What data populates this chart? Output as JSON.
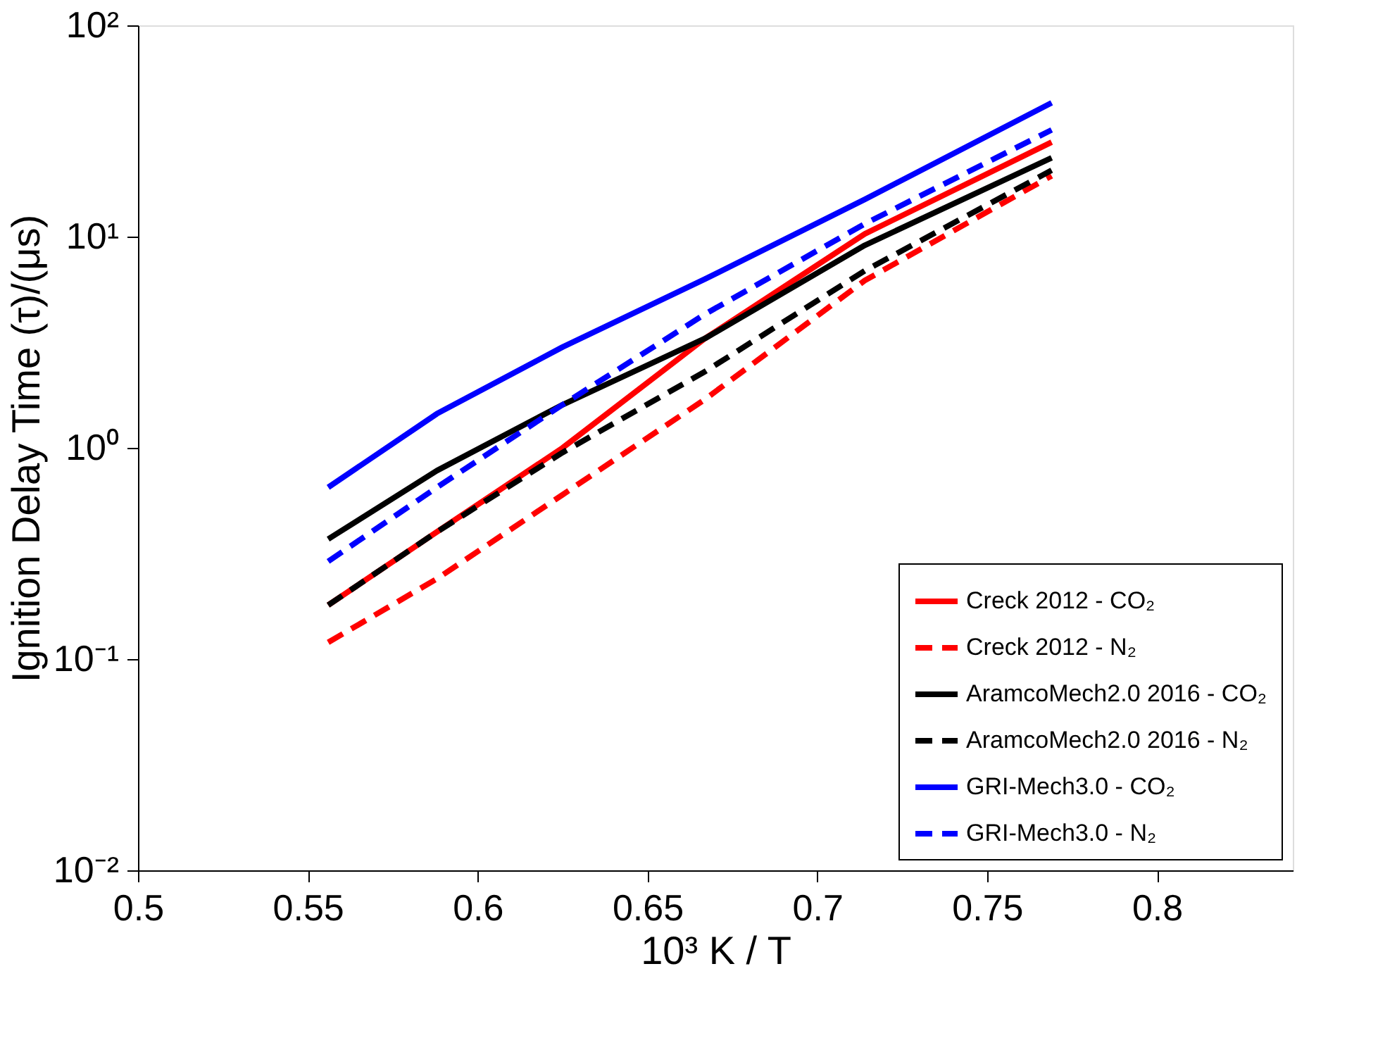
{
  "chart_data": {
    "type": "line",
    "xlabel": "10³ K / T",
    "ylabel": "Ignition Delay Time (τ)/(μs)",
    "x": [
      0.556,
      0.588,
      0.625,
      0.667,
      0.714,
      0.769
    ],
    "series": [
      {
        "name": "Creck 2012 - CO₂",
        "color": "#ff0000",
        "line_style": "solid",
        "values": [
          0.18,
          0.4,
          1.0,
          3.3,
          10.3,
          28
        ]
      },
      {
        "name": "Creck 2012 - N₂",
        "color": "#ff0000",
        "line_style": "dashed",
        "values": [
          0.12,
          0.24,
          0.6,
          1.7,
          6.2,
          19.4
        ]
      },
      {
        "name": "AramcoMech2.0 2016 - CO₂",
        "color": "#000000",
        "line_style": "solid",
        "values": [
          0.37,
          0.78,
          1.6,
          3.3,
          9.1,
          23.6
        ]
      },
      {
        "name": "AramcoMech2.0 2016 - N₂",
        "color": "#000000",
        "line_style": "dashed",
        "values": [
          0.18,
          0.4,
          0.95,
          2.3,
          6.9,
          20.6
        ]
      },
      {
        "name": "GRI-Mech3.0 - CO₂",
        "color": "#0000ff",
        "line_style": "solid",
        "values": [
          0.65,
          1.45,
          3.0,
          6.3,
          15,
          43
        ]
      },
      {
        "name": "GRI-Mech3.0 - N₂",
        "color": "#0000ff",
        "line_style": "dashed",
        "values": [
          0.29,
          0.65,
          1.6,
          4.3,
          11.5,
          32
        ]
      }
    ],
    "log": "y",
    "xlim": [
      0.5,
      0.84
    ],
    "xticks": [
      0.5,
      0.55,
      0.6,
      0.65,
      0.7,
      0.75,
      0.8
    ],
    "ylim": [
      0.01,
      100
    ],
    "yticks": [
      {
        "value": 0.01,
        "label": "10⁻²"
      },
      {
        "value": 0.1,
        "label": "10⁻¹"
      },
      {
        "value": 1,
        "label": "10⁰"
      },
      {
        "value": 10,
        "label": "10¹"
      },
      {
        "value": 100,
        "label": "10²"
      }
    ],
    "grid": false,
    "legend": "bottom right"
  }
}
